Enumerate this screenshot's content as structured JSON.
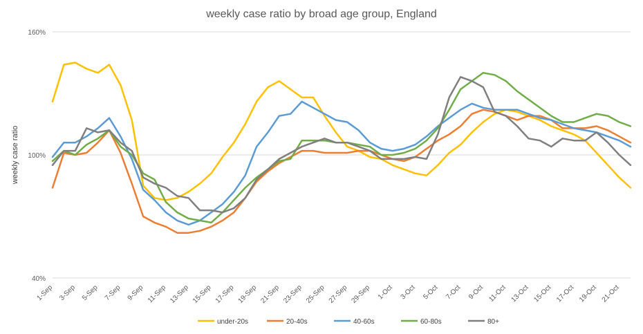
{
  "chart_data": {
    "type": "line",
    "title": "weekly case ratio by broad age group, England",
    "xlabel": "",
    "ylabel": "weekly case ratio",
    "ylim": [
      40,
      160
    ],
    "y_ticks": [
      "40%",
      "100%",
      "160%"
    ],
    "x_tick_labels": [
      "1-Sep",
      "3-Sep",
      "5-Sep",
      "7-Sep",
      "9-Sep",
      "11-Sep",
      "13-Sep",
      "15-Sep",
      "17-Sep",
      "19-Sep",
      "21-Sep",
      "23-Sep",
      "25-Sep",
      "27-Sep",
      "29-Sep",
      "1-Oct",
      "3-Oct",
      "5-Oct",
      "7-Oct",
      "9-Oct",
      "11-Oct",
      "13-Oct",
      "15-Oct",
      "17-Oct",
      "19-Oct",
      "21-Oct"
    ],
    "x": [
      "1-Sep",
      "2-Sep",
      "3-Sep",
      "4-Sep",
      "5-Sep",
      "6-Sep",
      "7-Sep",
      "8-Sep",
      "9-Sep",
      "10-Sep",
      "11-Sep",
      "12-Sep",
      "13-Sep",
      "14-Sep",
      "15-Sep",
      "16-Sep",
      "17-Sep",
      "18-Sep",
      "19-Sep",
      "20-Sep",
      "21-Sep",
      "22-Sep",
      "23-Sep",
      "24-Sep",
      "25-Sep",
      "26-Sep",
      "27-Sep",
      "28-Sep",
      "29-Sep",
      "30-Sep",
      "1-Oct",
      "2-Oct",
      "3-Oct",
      "4-Oct",
      "5-Oct",
      "6-Oct",
      "7-Oct",
      "8-Oct",
      "9-Oct",
      "10-Oct",
      "11-Oct",
      "12-Oct",
      "13-Oct",
      "14-Oct",
      "15-Oct",
      "16-Oct",
      "17-Oct",
      "18-Oct",
      "19-Oct",
      "20-Oct",
      "21-Oct",
      "22-Oct"
    ],
    "series": [
      {
        "name": "under-20s",
        "color": "#FFC000",
        "values": [
          126,
          144,
          145,
          142,
          140,
          144,
          134,
          117,
          85,
          79,
          78,
          79,
          82,
          86,
          91,
          99,
          106,
          115,
          126,
          133,
          136,
          132,
          128,
          128,
          119,
          111,
          104,
          102,
          99,
          98,
          95,
          93,
          91,
          90,
          95,
          101,
          105,
          111,
          116,
          120,
          122,
          121,
          119,
          117,
          114,
          112,
          110,
          107,
          101,
          95,
          89,
          84
        ]
      },
      {
        "name": "20-40s",
        "color": "#ED7D31",
        "values": [
          84,
          101,
          100,
          101,
          106,
          112,
          101,
          86,
          70,
          67,
          65,
          62,
          62,
          63,
          65,
          68,
          72,
          79,
          87,
          92,
          96,
          99,
          102,
          102,
          101,
          101,
          101,
          102,
          102,
          100,
          98,
          97,
          99,
          103,
          107,
          110,
          114,
          120,
          122,
          121,
          119,
          117,
          119,
          119,
          117,
          113,
          113,
          113,
          114,
          112,
          109,
          106
        ]
      },
      {
        "name": "40-60s",
        "color": "#5B9BD5",
        "values": [
          99,
          106,
          106,
          109,
          113,
          118,
          109,
          98,
          83,
          78,
          72,
          68,
          66,
          68,
          72,
          76,
          82,
          90,
          104,
          111,
          119,
          120,
          126,
          123,
          120,
          117,
          116,
          112,
          106,
          103,
          102,
          103,
          105,
          109,
          114,
          118,
          122,
          125,
          123,
          122,
          122,
          122,
          120,
          118,
          117,
          115,
          113,
          112,
          111,
          109,
          107,
          104
        ]
      },
      {
        "name": "60-80s",
        "color": "#70AD47",
        "values": [
          97,
          102,
          100,
          105,
          108,
          112,
          104,
          100,
          91,
          88,
          77,
          72,
          69,
          68,
          67,
          72,
          78,
          84,
          89,
          93,
          97,
          98,
          107,
          107,
          107,
          106,
          106,
          105,
          104,
          100,
          100,
          101,
          103,
          107,
          113,
          122,
          132,
          136,
          140,
          139,
          136,
          131,
          127,
          123,
          119,
          116,
          116,
          118,
          120,
          119,
          116,
          114
        ]
      },
      {
        "name": "80+",
        "color": "#7F7F7F",
        "values": [
          95,
          102,
          102,
          113,
          111,
          112,
          106,
          102,
          89,
          86,
          84,
          80,
          79,
          73,
          73,
          72,
          74,
          79,
          88,
          93,
          98,
          101,
          104,
          106,
          108,
          106,
          106,
          104,
          102,
          98,
          98,
          98,
          99,
          98,
          110,
          128,
          138,
          136,
          133,
          121,
          119,
          114,
          108,
          107,
          104,
          108,
          107,
          107,
          111,
          106,
          100,
          95
        ]
      }
    ]
  }
}
